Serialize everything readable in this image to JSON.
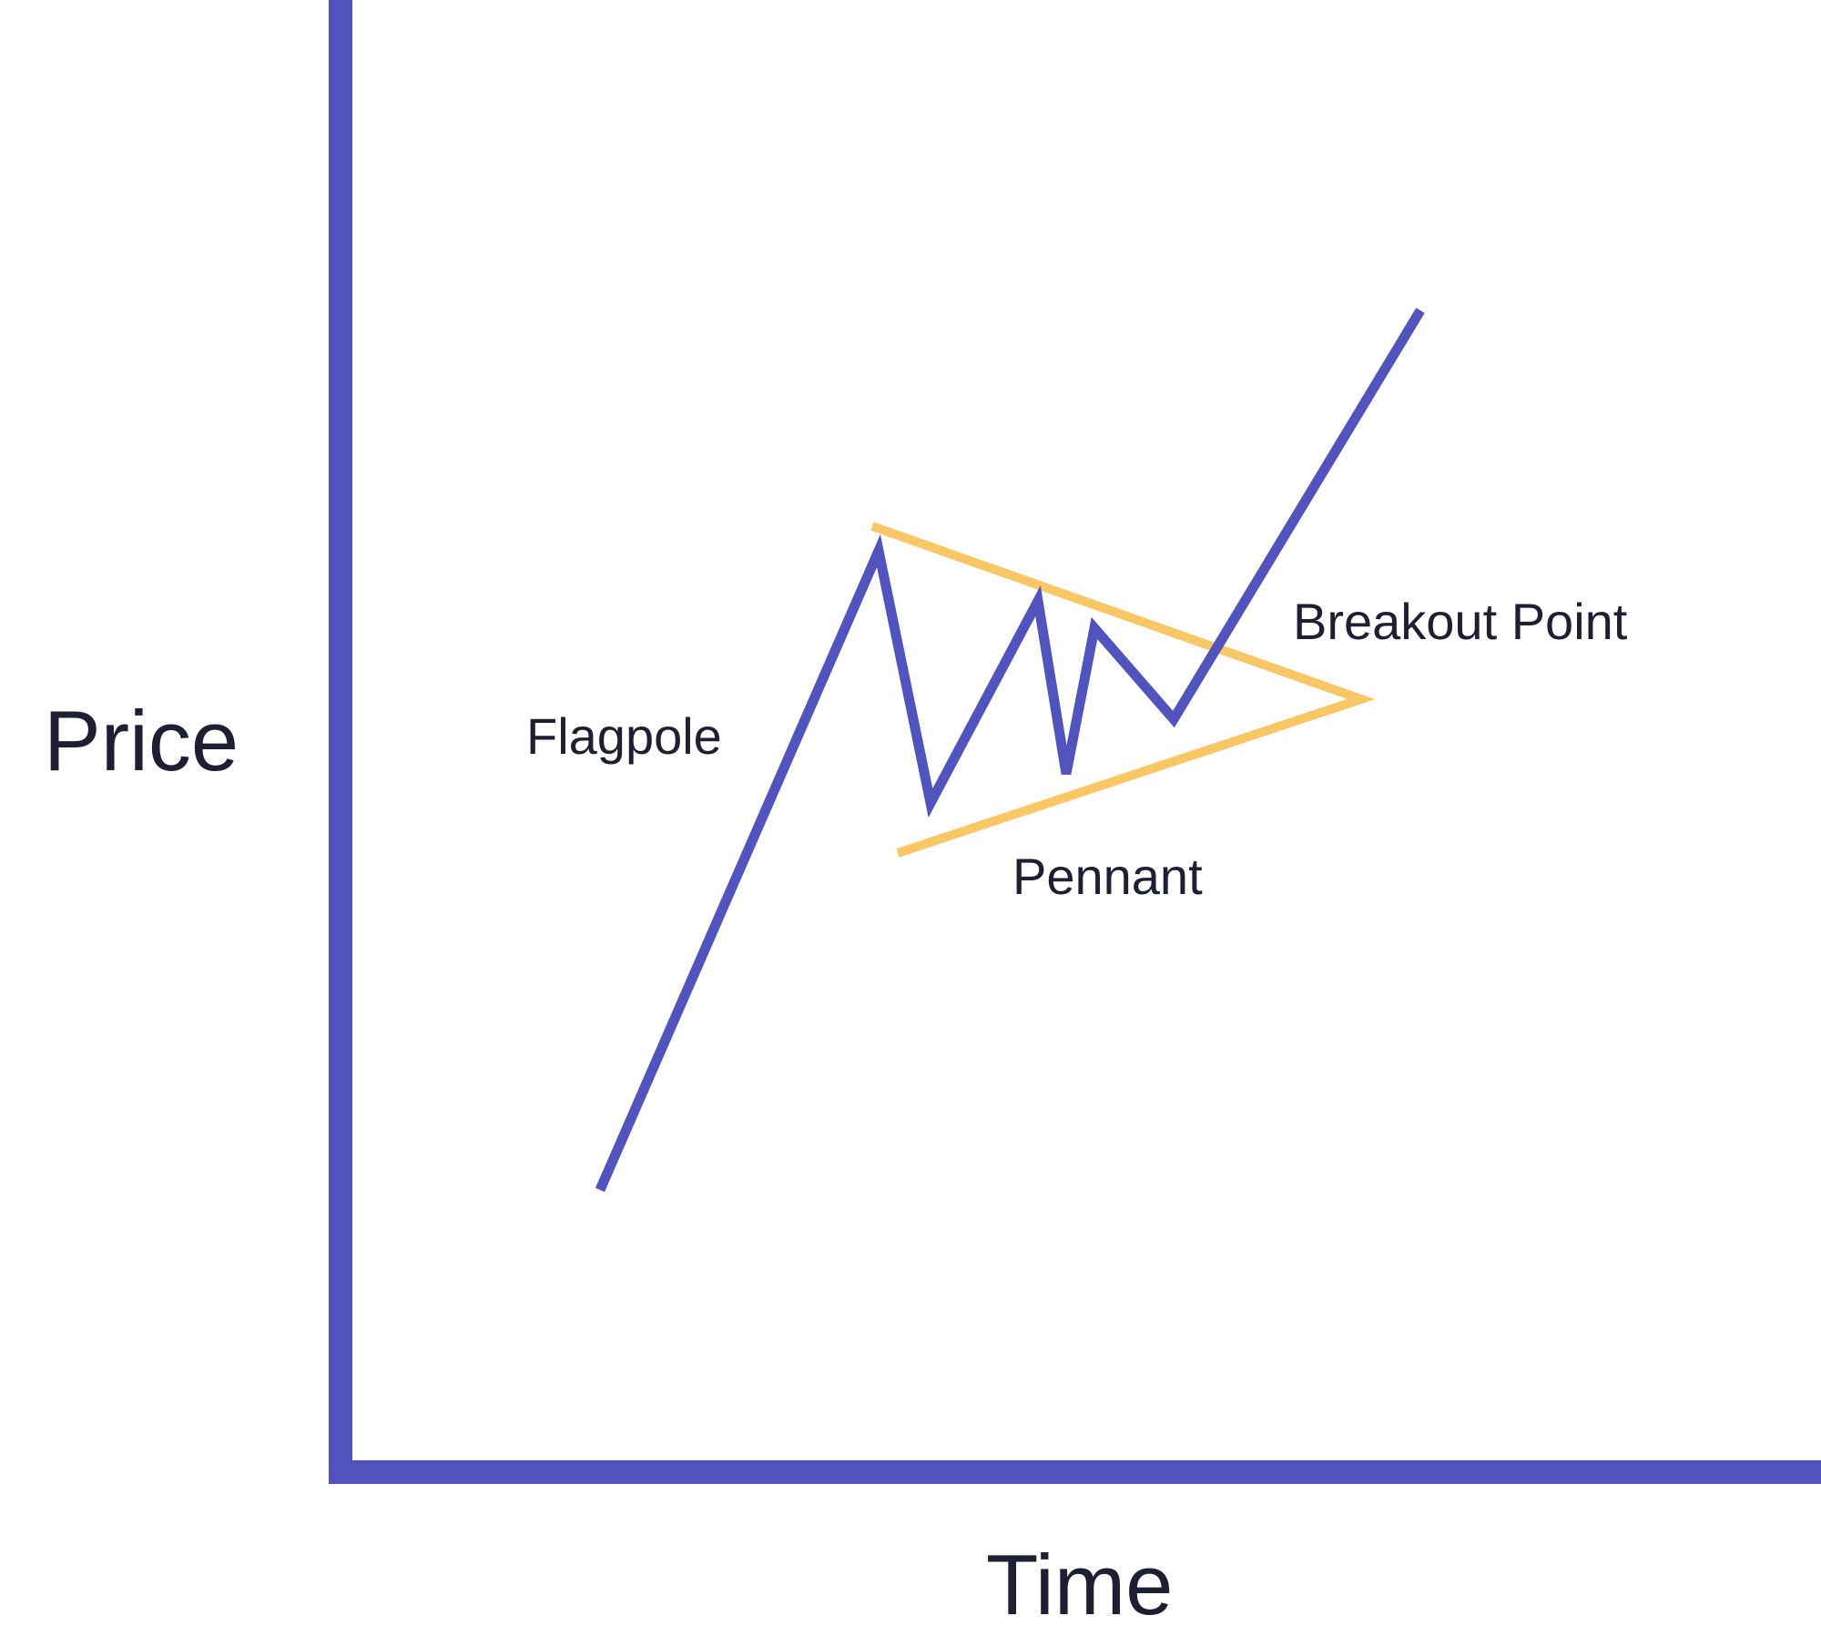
{
  "axes": {
    "y_label": "Price",
    "x_label": "Time"
  },
  "annotations": {
    "flagpole": "Flagpole",
    "pennant": "Pennant",
    "breakout": "Breakout Point"
  },
  "colors": {
    "axis": "#5254BD",
    "price_line": "#5254BD",
    "pennant_lines": "#F9C766",
    "text": "#1F1F33",
    "background": "#FFFFFF"
  }
}
